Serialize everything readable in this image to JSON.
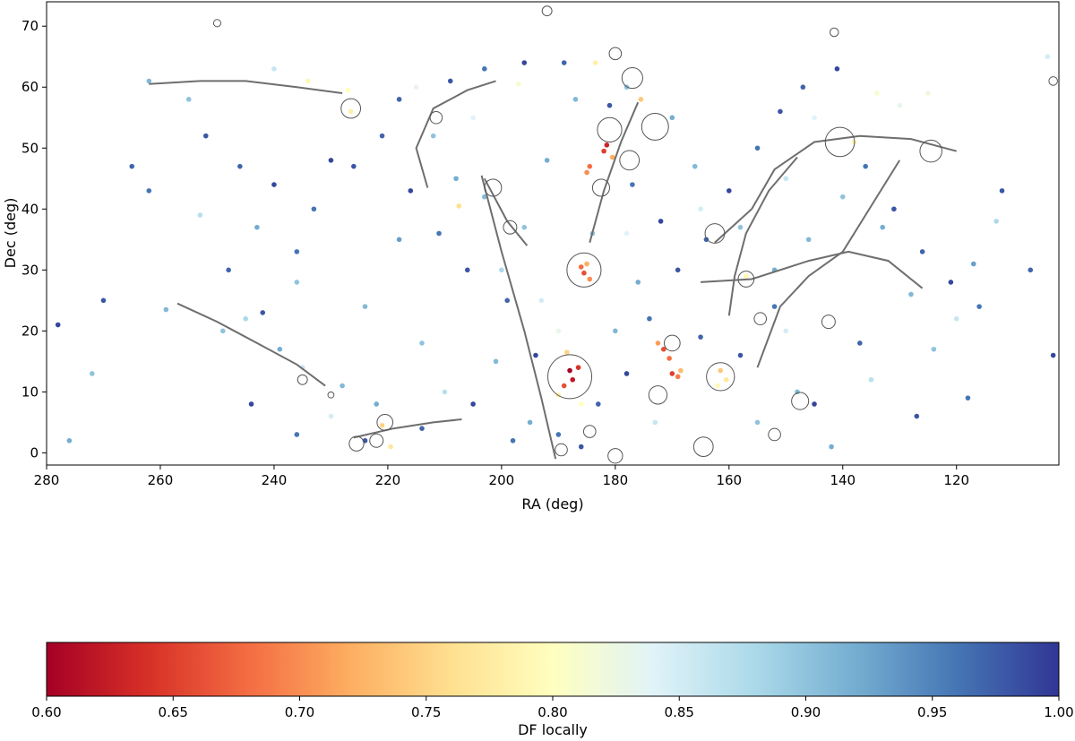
{
  "chart_data": {
    "type": "scatter",
    "xlabel": "RA (deg)",
    "ylabel": "Dec (deg)",
    "xlim": [
      280,
      102
    ],
    "ylim": [
      -2,
      74
    ],
    "x_reversed": true,
    "grid": false,
    "x_ticks": [
      "280",
      "260",
      "240",
      "220",
      "200",
      "180",
      "160",
      "140",
      "120"
    ],
    "x_tick_values": [
      280,
      260,
      240,
      220,
      200,
      180,
      160,
      140,
      120
    ],
    "y_ticks": [
      "0",
      "10",
      "20",
      "30",
      "40",
      "50",
      "60",
      "70"
    ],
    "y_tick_values": [
      0,
      10,
      20,
      30,
      40,
      50,
      60,
      70
    ],
    "colorbar": {
      "label": "DF locally",
      "range": [
        0.6,
        1.0
      ],
      "colormap": "RdYlBu",
      "orientation": "horizontal",
      "position": "bottom",
      "tick_labels": [
        "0.60",
        "0.65",
        "0.70",
        "0.75",
        "0.80",
        "0.85",
        "0.90",
        "0.95",
        "1.00"
      ],
      "tick_values": [
        0.6,
        0.65,
        0.7,
        0.75,
        0.8,
        0.85,
        0.9,
        0.95,
        1.0
      ],
      "stops": [
        "#a50026",
        "#d73027",
        "#f46d43",
        "#fdae61",
        "#fee090",
        "#ffffbf",
        "#e0f3f8",
        "#abd9e9",
        "#74add1",
        "#4575b4",
        "#313695"
      ]
    },
    "points": [
      [
        188.0,
        13.5,
        0.6
      ],
      [
        187.5,
        12.0,
        0.62
      ],
      [
        186.5,
        14.0,
        0.64
      ],
      [
        189.0,
        11.0,
        0.66
      ],
      [
        185.5,
        29.5,
        0.66
      ],
      [
        186.0,
        30.5,
        0.68
      ],
      [
        184.5,
        28.5,
        0.7
      ],
      [
        185.0,
        31.0,
        0.72
      ],
      [
        181.5,
        50.5,
        0.63
      ],
      [
        182.0,
        49.5,
        0.65
      ],
      [
        184.5,
        47.0,
        0.68
      ],
      [
        185.0,
        46.0,
        0.7
      ],
      [
        180.5,
        48.5,
        0.72
      ],
      [
        171.5,
        17.0,
        0.66
      ],
      [
        170.5,
        15.5,
        0.68
      ],
      [
        172.5,
        18.0,
        0.71
      ],
      [
        170.0,
        13.0,
        0.65
      ],
      [
        169.0,
        12.5,
        0.69
      ],
      [
        168.5,
        13.5,
        0.73
      ],
      [
        161.5,
        13.5,
        0.74
      ],
      [
        160.5,
        12.0,
        0.77
      ],
      [
        162.0,
        11.0,
        0.79
      ],
      [
        188.5,
        16.5,
        0.75
      ],
      [
        190.0,
        9.5,
        0.78
      ],
      [
        186.0,
        8.0,
        0.8
      ],
      [
        207.5,
        40.5,
        0.76
      ],
      [
        226.5,
        56.0,
        0.78
      ],
      [
        219.5,
        1.0,
        0.77
      ],
      [
        221.0,
        4.5,
        0.75
      ],
      [
        183.5,
        64.0,
        0.78
      ],
      [
        197.0,
        60.5,
        0.81
      ],
      [
        234.0,
        61.0,
        0.79
      ],
      [
        227.0,
        59.5,
        0.8
      ],
      [
        175.5,
        58.0,
        0.74
      ],
      [
        157.0,
        29.0,
        0.79
      ],
      [
        138.0,
        51.0,
        0.79
      ],
      [
        134.0,
        59.0,
        0.81
      ],
      [
        190.0,
        20.0,
        0.83
      ],
      [
        193.0,
        25.0,
        0.85
      ],
      [
        178.0,
        36.0,
        0.84
      ],
      [
        165.0,
        40.0,
        0.85
      ],
      [
        150.0,
        45.0,
        0.86
      ],
      [
        145.0,
        55.0,
        0.84
      ],
      [
        130.0,
        57.0,
        0.83
      ],
      [
        125.0,
        59.0,
        0.82
      ],
      [
        205.0,
        55.0,
        0.84
      ],
      [
        215.0,
        60.0,
        0.83
      ],
      [
        240.0,
        63.0,
        0.86
      ],
      [
        253.0,
        39.0,
        0.87
      ],
      [
        245.0,
        22.0,
        0.88
      ],
      [
        235.0,
        14.0,
        0.86
      ],
      [
        230.0,
        6.0,
        0.85
      ],
      [
        210.0,
        10.0,
        0.87
      ],
      [
        200.0,
        30.0,
        0.88
      ],
      [
        173.0,
        5.0,
        0.86
      ],
      [
        150.0,
        20.0,
        0.85
      ],
      [
        135.0,
        12.0,
        0.87
      ],
      [
        120.0,
        22.0,
        0.86
      ],
      [
        113.0,
        38.0,
        0.88
      ],
      [
        104.0,
        65.0,
        0.85
      ],
      [
        255.0,
        58.0,
        0.9
      ],
      [
        262.0,
        61.0,
        0.91
      ],
      [
        272.0,
        13.0,
        0.9
      ],
      [
        276.0,
        2.0,
        0.92
      ],
      [
        259.0,
        23.5,
        0.91
      ],
      [
        249.0,
        20.0,
        0.9
      ],
      [
        239.0,
        17.0,
        0.92
      ],
      [
        228.0,
        11.0,
        0.91
      ],
      [
        243.0,
        37.0,
        0.92
      ],
      [
        236.0,
        28.0,
        0.9
      ],
      [
        224.0,
        24.0,
        0.91
      ],
      [
        218.0,
        35.0,
        0.93
      ],
      [
        212.0,
        52.0,
        0.9
      ],
      [
        208.0,
        45.0,
        0.92
      ],
      [
        203.0,
        42.0,
        0.91
      ],
      [
        196.0,
        37.0,
        0.9
      ],
      [
        192.0,
        48.0,
        0.92
      ],
      [
        187.0,
        58.0,
        0.91
      ],
      [
        178.0,
        60.0,
        0.9
      ],
      [
        170.0,
        55.0,
        0.92
      ],
      [
        166.0,
        47.0,
        0.91
      ],
      [
        158.0,
        37.0,
        0.9
      ],
      [
        152.0,
        30.0,
        0.92
      ],
      [
        146.0,
        35.0,
        0.91
      ],
      [
        140.0,
        42.0,
        0.9
      ],
      [
        133.0,
        37.0,
        0.92
      ],
      [
        128.0,
        26.0,
        0.91
      ],
      [
        124.0,
        17.0,
        0.9
      ],
      [
        117.0,
        31.0,
        0.93
      ],
      [
        148.0,
        10.0,
        0.91
      ],
      [
        155.0,
        5.0,
        0.9
      ],
      [
        142.0,
        1.0,
        0.92
      ],
      [
        180.0,
        20.0,
        0.91
      ],
      [
        176.0,
        28.0,
        0.92
      ],
      [
        184.0,
        36.0,
        0.9
      ],
      [
        195.0,
        5.0,
        0.92
      ],
      [
        201.0,
        15.0,
        0.91
      ],
      [
        214.0,
        18.0,
        0.9
      ],
      [
        222.0,
        8.0,
        0.92
      ],
      [
        265.0,
        47.0,
        0.97
      ],
      [
        270.0,
        25.0,
        0.98
      ],
      [
        278.0,
        21.0,
        0.99
      ],
      [
        262.0,
        43.0,
        0.96
      ],
      [
        252.0,
        52.0,
        0.98
      ],
      [
        246.0,
        47.0,
        0.97
      ],
      [
        240.0,
        44.0,
        0.99
      ],
      [
        233.0,
        40.0,
        0.96
      ],
      [
        226.0,
        47.0,
        0.98
      ],
      [
        221.0,
        52.0,
        0.97
      ],
      [
        216.0,
        43.0,
        0.99
      ],
      [
        211.0,
        36.0,
        0.96
      ],
      [
        206.0,
        30.0,
        0.98
      ],
      [
        199.0,
        25.0,
        0.97
      ],
      [
        194.0,
        16.0,
        0.99
      ],
      [
        190.0,
        3.0,
        0.96
      ],
      [
        186.0,
        1.0,
        0.98
      ],
      [
        183.0,
        8.0,
        0.97
      ],
      [
        178.0,
        13.0,
        0.99
      ],
      [
        174.0,
        22.0,
        0.96
      ],
      [
        169.0,
        30.0,
        0.98
      ],
      [
        164.0,
        35.0,
        0.97
      ],
      [
        160.0,
        43.0,
        0.99
      ],
      [
        155.0,
        50.0,
        0.96
      ],
      [
        151.0,
        56.0,
        0.98
      ],
      [
        147.0,
        60.0,
        0.97
      ],
      [
        141.0,
        63.0,
        0.99
      ],
      [
        136.0,
        47.0,
        0.96
      ],
      [
        131.0,
        40.0,
        0.98
      ],
      [
        126.0,
        33.0,
        0.97
      ],
      [
        121.0,
        28.0,
        0.99
      ],
      [
        116.0,
        24.0,
        0.96
      ],
      [
        112.0,
        43.0,
        0.98
      ],
      [
        107.0,
        30.0,
        0.97
      ],
      [
        103.0,
        16.0,
        0.99
      ],
      [
        118.0,
        9.0,
        0.96
      ],
      [
        127.0,
        6.0,
        0.98
      ],
      [
        137.0,
        18.0,
        0.97
      ],
      [
        145.0,
        8.0,
        0.99
      ],
      [
        152.0,
        24.0,
        0.96
      ],
      [
        158.0,
        16.0,
        0.98
      ],
      [
        165.0,
        19.0,
        0.97
      ],
      [
        172.0,
        38.0,
        0.99
      ],
      [
        177.0,
        44.0,
        0.96
      ],
      [
        181.0,
        57.0,
        0.98
      ],
      [
        189.0,
        64.0,
        0.97
      ],
      [
        196.0,
        64.0,
        0.99
      ],
      [
        203.0,
        63.0,
        0.96
      ],
      [
        209.0,
        61.0,
        0.98
      ],
      [
        218.0,
        58.0,
        0.97
      ],
      [
        230.0,
        48.0,
        0.99
      ],
      [
        236.0,
        33.0,
        0.96
      ],
      [
        242.0,
        23.0,
        0.98
      ],
      [
        248.0,
        30.0,
        0.97
      ],
      [
        244.0,
        8.0,
        0.99
      ],
      [
        236.0,
        3.0,
        0.96
      ],
      [
        224.0,
        2.0,
        0.98
      ],
      [
        214.0,
        4.0,
        0.97
      ],
      [
        205.0,
        8.0,
        0.99
      ],
      [
        198.0,
        2.0,
        0.96
      ]
    ],
    "group_circles": [
      [
        188.0,
        12.5,
        3.6
      ],
      [
        185.5,
        30.0,
        2.8
      ],
      [
        181.0,
        53.0,
        2.0
      ],
      [
        177.0,
        61.5,
        1.7
      ],
      [
        173.0,
        53.5,
        2.2
      ],
      [
        177.5,
        48.0,
        1.6
      ],
      [
        182.5,
        43.5,
        1.4
      ],
      [
        162.5,
        36.0,
        1.6
      ],
      [
        161.5,
        12.5,
        2.3
      ],
      [
        157.0,
        28.5,
        1.3
      ],
      [
        140.5,
        51.0,
        2.4
      ],
      [
        124.5,
        49.5,
        1.8
      ],
      [
        147.5,
        8.5,
        1.4
      ],
      [
        164.5,
        1.0,
        1.6
      ],
      [
        172.5,
        9.5,
        1.5
      ],
      [
        170.0,
        18.0,
        1.3
      ],
      [
        226.5,
        56.5,
        1.6
      ],
      [
        201.5,
        43.5,
        1.4
      ],
      [
        198.5,
        37.0,
        1.1
      ],
      [
        211.5,
        55.0,
        1.0
      ],
      [
        220.5,
        5.0,
        1.3
      ],
      [
        225.5,
        1.5,
        1.2
      ],
      [
        222.0,
        2.0,
        1.1
      ],
      [
        184.5,
        3.5,
        1.0
      ],
      [
        180.0,
        -0.5,
        1.2
      ],
      [
        189.5,
        0.5,
        1.0
      ],
      [
        154.5,
        22.0,
        1.0
      ],
      [
        142.5,
        21.5,
        1.1
      ],
      [
        192.0,
        72.5,
        0.8
      ],
      [
        180.0,
        65.5,
        1.0
      ],
      [
        141.5,
        69.0,
        0.7
      ],
      [
        103.0,
        61.0,
        0.7
      ],
      [
        250.0,
        70.5,
        0.6
      ],
      [
        230.0,
        9.5,
        0.5
      ],
      [
        235.0,
        12.0,
        0.8
      ],
      [
        152.0,
        3.0,
        1.0
      ]
    ],
    "curves": [
      [
        [
          262,
          60.5
        ],
        [
          253,
          61
        ],
        [
          245,
          61
        ],
        [
          236,
          60
        ],
        [
          228,
          59
        ]
      ],
      [
        [
          257,
          24.5
        ],
        [
          250,
          21.5
        ],
        [
          243,
          18
        ],
        [
          236,
          14.5
        ],
        [
          231,
          11
        ]
      ],
      [
        [
          213,
          43.5
        ],
        [
          215,
          50
        ],
        [
          212,
          56.5
        ],
        [
          206,
          59.5
        ],
        [
          201,
          61
        ]
      ],
      [
        [
          226,
          2.5
        ],
        [
          219,
          4.0
        ],
        [
          212,
          5.0
        ],
        [
          207,
          5.5
        ]
      ],
      [
        [
          203.5,
          45.5
        ],
        [
          200,
          33
        ],
        [
          196,
          20
        ],
        [
          193,
          9
        ],
        [
          190.5,
          -1
        ]
      ],
      [
        [
          203,
          45
        ],
        [
          199,
          38
        ],
        [
          195.5,
          34
        ]
      ],
      [
        [
          184.5,
          34.5
        ],
        [
          182,
          43
        ],
        [
          179,
          51
        ],
        [
          176,
          57.5
        ]
      ],
      [
        [
          162.5,
          34.5
        ],
        [
          156,
          40
        ],
        [
          152,
          46.5
        ],
        [
          145,
          51
        ],
        [
          137,
          52
        ],
        [
          128,
          51.5
        ],
        [
          120,
          49.5
        ]
      ],
      [
        [
          165,
          28
        ],
        [
          156,
          28.5
        ],
        [
          146,
          31.5
        ],
        [
          139,
          33
        ],
        [
          132,
          31.5
        ],
        [
          126,
          27
        ]
      ],
      [
        [
          160,
          22.5
        ],
        [
          159,
          29
        ],
        [
          157,
          36
        ],
        [
          153,
          43
        ],
        [
          148,
          48.5
        ]
      ],
      [
        [
          155,
          14
        ],
        [
          151,
          24
        ],
        [
          146,
          29
        ],
        [
          140,
          33
        ],
        [
          135,
          40.5
        ],
        [
          130,
          48
        ]
      ]
    ]
  }
}
